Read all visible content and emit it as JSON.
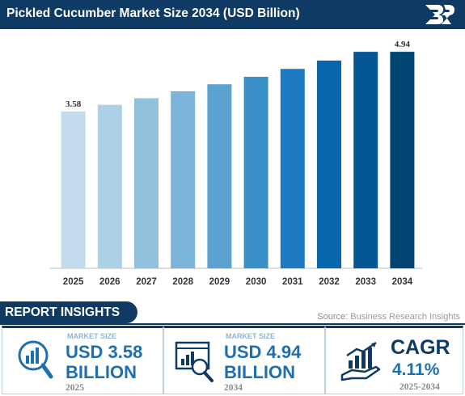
{
  "header": {
    "title": "Pickled Cucumber Market Size 2034 (USD Billion)"
  },
  "chart_data": {
    "type": "bar",
    "title": "Pickled Cucumber Market Size 2034 (USD Billion)",
    "categories": [
      "2025",
      "2026",
      "2027",
      "2028",
      "2029",
      "2030",
      "2031",
      "2032",
      "2033",
      "2034"
    ],
    "values": [
      3.58,
      3.73,
      3.88,
      4.04,
      4.2,
      4.37,
      4.55,
      4.74,
      4.94,
      4.94
    ],
    "labeled_values": {
      "0": "3.58",
      "9": "4.94"
    },
    "bar_colors": [
      "#c3dbeb",
      "#acd0e5",
      "#92c1de",
      "#7ab4d8",
      "#5aa2d0",
      "#3a8fc8",
      "#1e7ac0",
      "#0866ae",
      "#055694",
      "#024674"
    ],
    "ylim": [
      0,
      5.2
    ],
    "grid": false,
    "xlabel": "",
    "ylabel": ""
  },
  "insights": {
    "heading": "REPORT INSIGHTS",
    "source_key": "Source:",
    "source_value": "Business Research Insights"
  },
  "cards": [
    {
      "label": "MARKET SIZE",
      "value_line1": "USD 3.58",
      "value_line2": "BILLION",
      "year": "2025",
      "icon": "chart-magnifier-icon"
    },
    {
      "label": "MARKET SIZE",
      "value_line1": "USD 4.94",
      "value_line2": "BILLION",
      "year": "2034",
      "icon": "report-magnifier-icon"
    },
    {
      "title": "CAGR",
      "value": "4.11%",
      "years": "2025-2034",
      "icon": "growth-hand-icon"
    }
  ],
  "colors": {
    "navy": "#0f3a63",
    "accent_blue": "#1d6fb0",
    "label_blue": "#8fb4d6"
  }
}
